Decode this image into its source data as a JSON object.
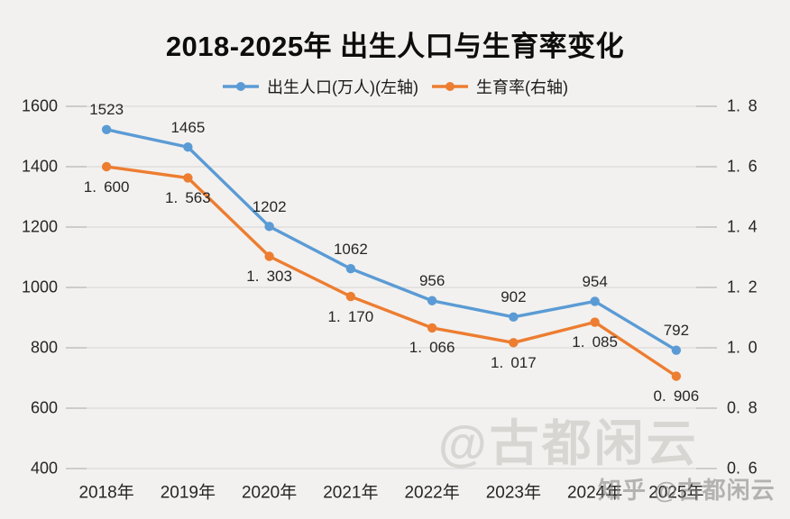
{
  "title": "2018-2025年 出生人口与生育率变化",
  "legend": {
    "items": [
      {
        "label": "出生人口(万人)(左轴)",
        "color": "#5b9bd5"
      },
      {
        "label": "生育率(右轴)",
        "color": "#ed7d31"
      }
    ]
  },
  "watermarks": {
    "center": "@古都闲云",
    "corner": "知乎 @古都闲云"
  },
  "colors": {
    "background": "#f2f1ef",
    "grid": "#dcdbd9",
    "tick": "#c2c1bf",
    "text": "#262626",
    "series_births": "#5b9bd5",
    "series_fertility": "#ed7d31"
  },
  "chart_data": {
    "type": "line",
    "title": "2018-2025年 出生人口与生育率变化",
    "categories": [
      "2018年",
      "2019年",
      "2020年",
      "2021年",
      "2022年",
      "2023年",
      "2024年",
      "2025年"
    ],
    "series": [
      {
        "name": "出生人口(万人)(左轴)",
        "axis": "left",
        "color": "#5b9bd5",
        "values": [
          1523,
          1465,
          1202,
          1062,
          956,
          902,
          954,
          792
        ],
        "labels": [
          "1523",
          "1465",
          "1202",
          "1062",
          "956",
          "902",
          "954",
          "792"
        ],
        "label_side": "above"
      },
      {
        "name": "生育率(右轴)",
        "axis": "right",
        "color": "#ed7d31",
        "values": [
          1.6,
          1.563,
          1.303,
          1.17,
          1.066,
          1.017,
          1.085,
          0.906
        ],
        "labels": [
          "1.600",
          "1.563",
          "1.303",
          "1.170",
          "1.066",
          "1.017",
          "1.085",
          "0.906"
        ],
        "label_side": "below"
      }
    ],
    "left_axis": {
      "min": 400,
      "max": 1600,
      "tick_values": [
        1600,
        1400,
        1200,
        1000,
        800,
        600,
        400
      ],
      "tick_labels": [
        "1600",
        "1400",
        "1200",
        "1000",
        "800",
        "600",
        "400"
      ]
    },
    "right_axis": {
      "min": 0.6,
      "max": 1.8,
      "tick_values": [
        1.8,
        1.6,
        1.4,
        1.2,
        1.0,
        0.8,
        0.6
      ],
      "tick_labels": [
        "1.8",
        "1.6",
        "1.4",
        "1.2",
        "1.0",
        "0.8",
        "0.6"
      ]
    },
    "grid": true,
    "legend_position": "top"
  }
}
